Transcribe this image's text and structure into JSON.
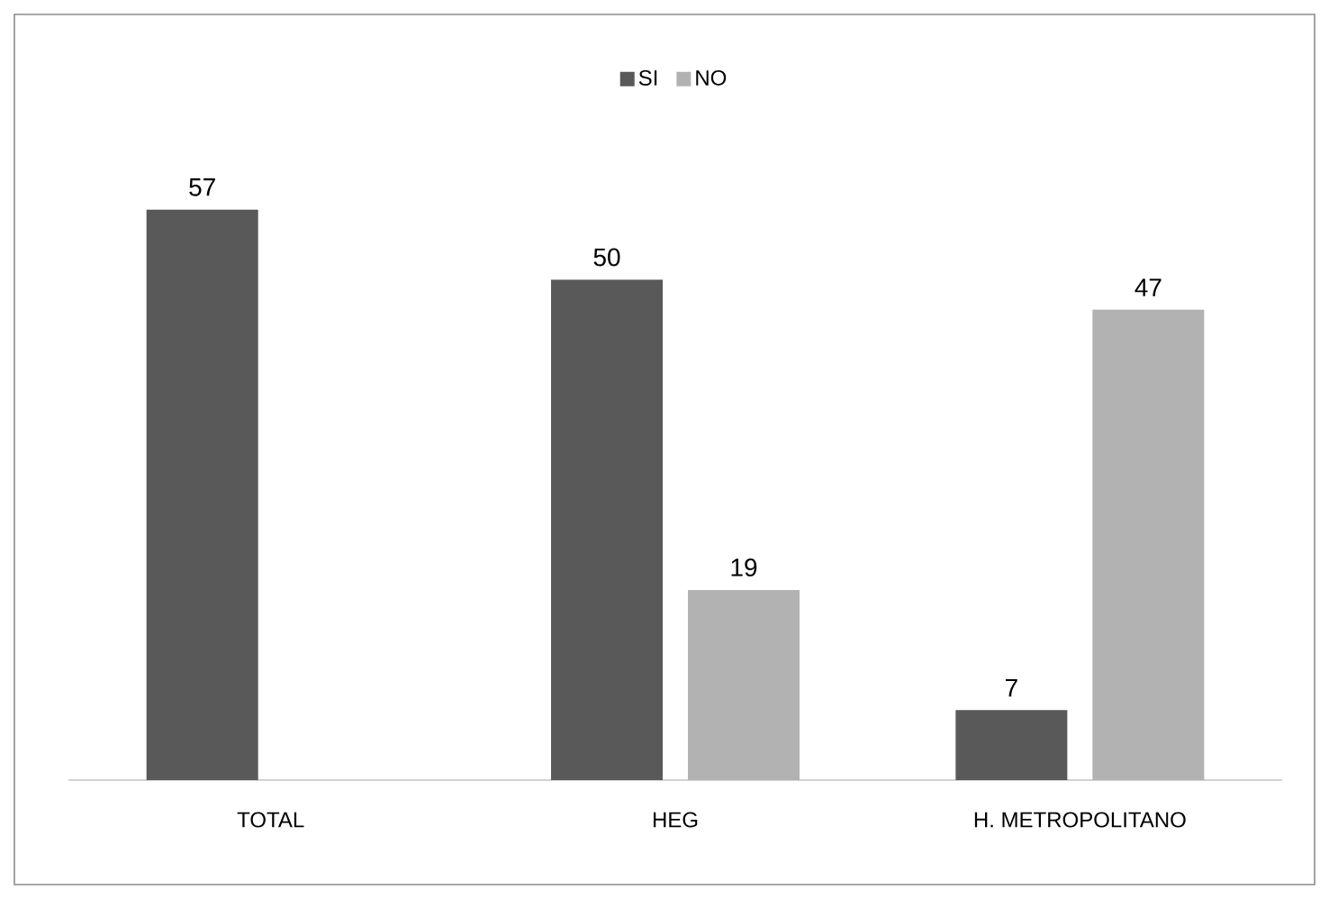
{
  "chart_data": {
    "type": "bar",
    "categories": [
      "TOTAL",
      "HEG",
      "H. METROPOLITANO"
    ],
    "series": [
      {
        "name": "SI",
        "color": "#595959",
        "values": [
          57,
          50,
          7
        ]
      },
      {
        "name": "NO",
        "color": "#b2b2b2",
        "values": [
          null,
          19,
          47
        ]
      }
    ],
    "data_labels": true,
    "legend": "top"
  }
}
